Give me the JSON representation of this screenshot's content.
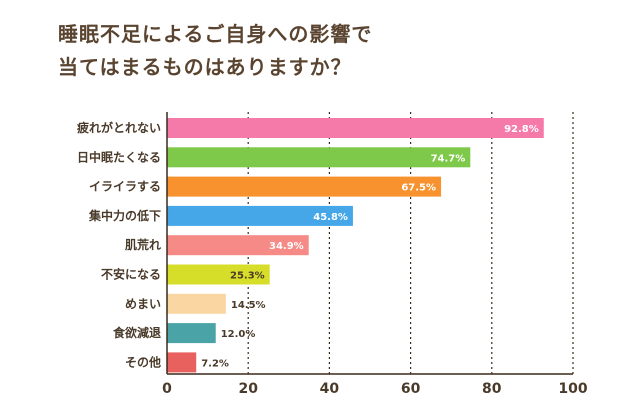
{
  "title_lines": [
    "睡眠不足によるご自身への影響で",
    "当てはまるものはありますか？"
  ],
  "chart_data": {
    "type": "bar",
    "orientation": "horizontal",
    "categories": [
      "疲れがとれない",
      "日中眠たくなる",
      "イライラする",
      "集中力の低下",
      "肌荒れ",
      "不安になる",
      "めまい",
      "食欲減退",
      "その他"
    ],
    "values": [
      92.8,
      74.7,
      67.5,
      45.8,
      34.9,
      25.3,
      14.5,
      12.0,
      7.2
    ],
    "value_labels": [
      "92.8%",
      "74.7%",
      "67.5%",
      "45.8%",
      "34.9%",
      "25.3%",
      "14.5%",
      "12.0%",
      "7.2%"
    ],
    "colors": [
      "#f57aa9",
      "#7ec84a",
      "#f7922f",
      "#46a7e8",
      "#f58a86",
      "#d7de2a",
      "#fad7a2",
      "#4aa3a6",
      "#e9615f"
    ],
    "label_colors": [
      "#ffffff",
      "#ffffff",
      "#ffffff",
      "#ffffff",
      "#ffffff",
      "#4a3a2a",
      "#4a3a2a",
      "#4a3a2a",
      "#4a3a2a"
    ],
    "label_inside": [
      true,
      true,
      true,
      true,
      true,
      true,
      false,
      false,
      false
    ],
    "xlim": [
      0,
      100
    ],
    "x_ticks": [
      "0",
      "20",
      "40",
      "60",
      "80",
      "100"
    ],
    "gridlines": "dotted vertical",
    "legend": "none"
  }
}
